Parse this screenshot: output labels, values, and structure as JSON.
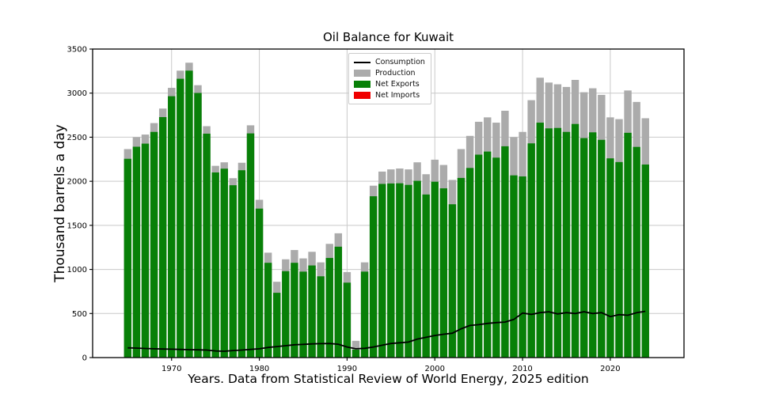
{
  "figure": {
    "background": "#ffffff"
  },
  "chart_data": {
    "type": "bar",
    "title": "Oil Balance for Kuwait",
    "xlabel": "Years. Data from Statistical Review of World Energy, 2025 edition",
    "ylabel": "Thousand barrels a day",
    "ylim": [
      0,
      3500
    ],
    "xlim": [
      1961,
      2028.4
    ],
    "yticks": [
      0,
      500,
      1000,
      1500,
      2000,
      2500,
      3000,
      3500
    ],
    "xticks": [
      1970,
      1980,
      1990,
      2000,
      2010,
      2020
    ],
    "grid": true,
    "grid_color": "#c9c9c9",
    "spine_color": "#000000",
    "bar_width_years": 0.85,
    "legend": {
      "position": "upper center",
      "entries": [
        {
          "label": "Consumption",
          "type": "line",
          "color": "#000000"
        },
        {
          "label": "Production",
          "type": "patch",
          "color": "#ababab"
        },
        {
          "label": "Net Exports",
          "type": "patch",
          "color": "#088008"
        },
        {
          "label": "Net Imports",
          "type": "patch",
          "color": "#f00000"
        }
      ]
    },
    "years": [
      1965,
      1966,
      1967,
      1968,
      1969,
      1970,
      1971,
      1972,
      1973,
      1974,
      1975,
      1976,
      1977,
      1978,
      1979,
      1980,
      1981,
      1982,
      1983,
      1984,
      1985,
      1986,
      1987,
      1988,
      1989,
      1990,
      1991,
      1992,
      1993,
      1994,
      1995,
      1996,
      1997,
      1998,
      1999,
      2000,
      2001,
      2002,
      2003,
      2004,
      2005,
      2006,
      2007,
      2008,
      2009,
      2010,
      2011,
      2012,
      2013,
      2014,
      2015,
      2016,
      2017,
      2018,
      2019,
      2020,
      2021,
      2022,
      2023,
      2024
    ],
    "series": [
      {
        "name": "Production",
        "render": "bar",
        "color": "#ababab",
        "values": [
          2365,
          2500,
          2530,
          2660,
          2825,
          3060,
          3255,
          3345,
          3090,
          2625,
          2175,
          2215,
          2035,
          2210,
          2635,
          1790,
          1190,
          860,
          1115,
          1220,
          1125,
          1200,
          1080,
          1290,
          1410,
          970,
          190,
          1080,
          1950,
          2110,
          2135,
          2145,
          2135,
          2215,
          2080,
          2245,
          2185,
          2015,
          2365,
          2515,
          2675,
          2725,
          2665,
          2800,
          2500,
          2560,
          2920,
          3175,
          3120,
          3100,
          3070,
          3150,
          3010,
          3055,
          2980,
          2725,
          2705,
          3030,
          2900,
          2715
        ]
      },
      {
        "name": "Net Exports",
        "render": "bar",
        "color": "#088008",
        "values": [
          2255,
          2392,
          2427,
          2560,
          2728,
          2965,
          3163,
          3255,
          3002,
          2540,
          2100,
          2143,
          1955,
          2125,
          2543,
          1690,
          1075,
          735,
          980,
          1075,
          975,
          1045,
          922,
          1130,
          1258,
          850,
          90,
          975,
          1830,
          1970,
          1975,
          1977,
          1959,
          2005,
          1850,
          1995,
          1920,
          1739,
          2038,
          2151,
          2302,
          2337,
          2268,
          2397,
          2067,
          2055,
          2430,
          2665,
          2600,
          2605,
          2560,
          2650,
          2490,
          2555,
          2470,
          2260,
          2218,
          2550,
          2390,
          2190
        ]
      },
      {
        "name": "Net Imports",
        "render": "bar",
        "color": "#f00000",
        "values": [],
        "note": "no red bars visible; net imports are zero for all years shown"
      },
      {
        "name": "Consumption",
        "render": "line",
        "color": "#000000",
        "line_width": 1.8,
        "values": [
          110,
          108,
          103,
          100,
          97,
          95,
          92,
          90,
          88,
          85,
          75,
          72,
          80,
          85,
          92,
          100,
          115,
          125,
          135,
          145,
          150,
          155,
          158,
          160,
          152,
          120,
          100,
          105,
          120,
          140,
          160,
          168,
          176,
          210,
          230,
          250,
          265,
          276,
          327,
          364,
          373,
          388,
          397,
          403,
          433,
          505,
          490,
          510,
          520,
          495,
          510,
          500,
          520,
          500,
          510,
          465,
          487,
          480,
          510,
          525
        ]
      }
    ]
  }
}
